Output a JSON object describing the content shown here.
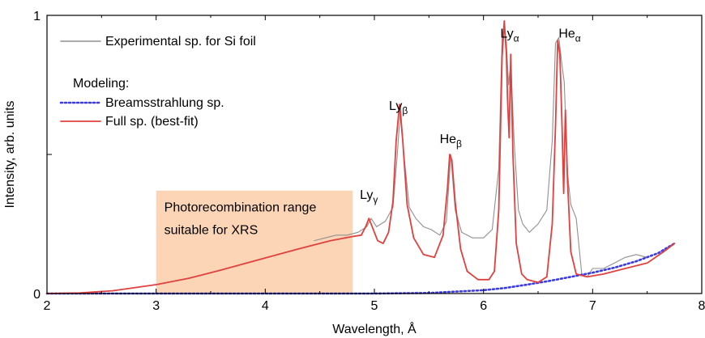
{
  "chart_data": {
    "type": "line",
    "xlabel": "Wavelength, Å",
    "ylabel": "Intensity, arb. units",
    "xlim": [
      2,
      8
    ],
    "ylim": [
      0,
      1
    ],
    "x_ticks": [
      "2",
      "3",
      "4",
      "5",
      "6",
      "7",
      "8"
    ],
    "y_ticks": [
      "0",
      "1"
    ],
    "grid": false,
    "legend": {
      "placement": "top-left",
      "entries": [
        {
          "series": "experimental",
          "label": "Experimental sp. for Si foil"
        },
        {
          "header": "Modeling:"
        },
        {
          "series": "bremsstrahlung",
          "label": "Breamsstrahlung sp."
        },
        {
          "series": "full",
          "label": "Full sp. (best-fit)"
        }
      ]
    },
    "highlight_region": {
      "x_range": [
        3.0,
        4.8
      ],
      "y_range": [
        0,
        0.37
      ],
      "color": "#fbd5b5",
      "text_line1": "Photorecombination range",
      "text_line2": "suitable for XRS"
    },
    "line_annotations": [
      {
        "base": "Ly",
        "sub": "γ",
        "x": 4.95,
        "y": 0.34
      },
      {
        "base": "Ly",
        "sub": "β",
        "x": 5.22,
        "y": 0.66
      },
      {
        "base": "He",
        "sub": "β",
        "x": 5.7,
        "y": 0.54
      },
      {
        "base": "Ly",
        "sub": "α",
        "x": 6.24,
        "y": 0.92
      },
      {
        "base": "He",
        "sub": "α",
        "x": 6.79,
        "y": 0.92
      }
    ],
    "series": [
      {
        "id": "experimental",
        "color": "#909090",
        "x": [
          4.45,
          4.55,
          4.65,
          4.75,
          4.85,
          4.93,
          4.97,
          5.02,
          5.1,
          5.17,
          5.21,
          5.24,
          5.27,
          5.32,
          5.38,
          5.45,
          5.52,
          5.6,
          5.66,
          5.7,
          5.74,
          5.8,
          5.9,
          6.0,
          6.08,
          6.14,
          6.17,
          6.19,
          6.21,
          6.23,
          6.25,
          6.28,
          6.32,
          6.36,
          6.42,
          6.5,
          6.58,
          6.63,
          6.66,
          6.69,
          6.72,
          6.74,
          6.77,
          6.8,
          6.85,
          6.9,
          6.95,
          7.0,
          7.1,
          7.2,
          7.3,
          7.4,
          7.5
        ],
        "y": [
          0.19,
          0.2,
          0.21,
          0.21,
          0.22,
          0.24,
          0.27,
          0.24,
          0.26,
          0.31,
          0.5,
          0.67,
          0.5,
          0.31,
          0.27,
          0.24,
          0.23,
          0.21,
          0.26,
          0.5,
          0.3,
          0.22,
          0.2,
          0.2,
          0.23,
          0.45,
          0.92,
          0.97,
          0.9,
          0.75,
          0.83,
          0.55,
          0.3,
          0.25,
          0.22,
          0.25,
          0.3,
          0.55,
          0.9,
          0.92,
          0.82,
          0.76,
          0.43,
          0.32,
          0.27,
          0.07,
          0.06,
          0.09,
          0.09,
          0.11,
          0.13,
          0.14,
          0.13
        ]
      },
      {
        "id": "bremsstrahlung",
        "color": "#3a3ae6",
        "x": [
          2.0,
          5.0,
          5.5,
          6.0,
          6.2,
          6.4,
          6.6,
          6.8,
          7.0,
          7.2,
          7.4,
          7.6,
          7.75
        ],
        "y": [
          0.0,
          0.0,
          0.002,
          0.012,
          0.02,
          0.032,
          0.045,
          0.06,
          0.075,
          0.093,
          0.116,
          0.145,
          0.18
        ]
      },
      {
        "id": "full",
        "color": "#e0413f",
        "x": [
          2.0,
          2.3,
          2.6,
          3.0,
          3.3,
          3.6,
          4.0,
          4.3,
          4.6,
          4.8,
          4.88,
          4.92,
          4.95,
          4.98,
          5.03,
          5.08,
          5.13,
          5.17,
          5.2,
          5.23,
          5.26,
          5.3,
          5.36,
          5.45,
          5.55,
          5.63,
          5.67,
          5.69,
          5.71,
          5.74,
          5.79,
          5.85,
          5.95,
          6.05,
          6.1,
          6.14,
          6.17,
          6.19,
          6.21,
          6.22,
          6.235,
          6.25,
          6.27,
          6.3,
          6.35,
          6.4,
          6.5,
          6.58,
          6.63,
          6.66,
          6.68,
          6.7,
          6.72,
          6.735,
          6.75,
          6.77,
          6.8,
          6.85,
          6.95,
          7.1,
          7.3,
          7.5,
          7.65,
          7.75
        ],
        "y": [
          0.0,
          0.002,
          0.01,
          0.032,
          0.055,
          0.085,
          0.128,
          0.16,
          0.19,
          0.205,
          0.21,
          0.24,
          0.27,
          0.24,
          0.19,
          0.18,
          0.22,
          0.33,
          0.55,
          0.68,
          0.55,
          0.32,
          0.2,
          0.14,
          0.13,
          0.21,
          0.38,
          0.5,
          0.48,
          0.33,
          0.16,
          0.08,
          0.05,
          0.05,
          0.08,
          0.3,
          0.85,
          0.98,
          0.86,
          0.7,
          0.56,
          0.86,
          0.5,
          0.18,
          0.07,
          0.05,
          0.04,
          0.06,
          0.25,
          0.6,
          0.91,
          0.86,
          0.6,
          0.36,
          0.66,
          0.4,
          0.15,
          0.07,
          0.06,
          0.07,
          0.09,
          0.11,
          0.15,
          0.18
        ]
      }
    ]
  }
}
